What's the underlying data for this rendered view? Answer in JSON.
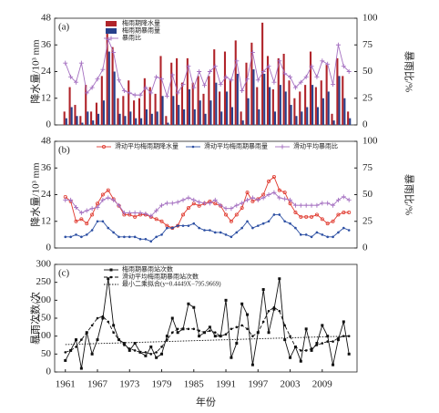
{
  "chart_data": [
    {
      "type": "bar",
      "panel_label": "(a)",
      "ylabel": "降水量/10³ mm",
      "y2label": "暴雨比/%",
      "xlim": [
        1959,
        2015.5
      ],
      "ylim": [
        0,
        48
      ],
      "yticks": [
        0,
        12,
        24,
        36,
        48
      ],
      "y2lim": [
        0,
        100
      ],
      "y2ticks": [
        0,
        25,
        50,
        75,
        100
      ],
      "legend": "top-left",
      "x": [
        1961,
        1962,
        1963,
        1964,
        1965,
        1966,
        1967,
        1968,
        1969,
        1970,
        1971,
        1972,
        1973,
        1974,
        1975,
        1976,
        1977,
        1978,
        1979,
        1980,
        1981,
        1982,
        1983,
        1984,
        1985,
        1986,
        1987,
        1988,
        1989,
        1990,
        1991,
        1992,
        1993,
        1994,
        1995,
        1996,
        1997,
        1998,
        1999,
        2000,
        2001,
        2002,
        2003,
        2004,
        2005,
        2006,
        2007,
        2008,
        2009,
        2010,
        2011,
        2012,
        2013,
        2014
      ],
      "series": [
        {
          "name": "梅雨期降水量",
          "type": "bar",
          "color": "#b0242a",
          "values": [
            6,
            17,
            9,
            4,
            18,
            6,
            10,
            22,
            42,
            35,
            12,
            13,
            20,
            11,
            12,
            21,
            17,
            14,
            31,
            4,
            28,
            30,
            19,
            30,
            19,
            22,
            14,
            22,
            34,
            15,
            33,
            20,
            38,
            6,
            28,
            37,
            17,
            46,
            31,
            16,
            30,
            32,
            20,
            12,
            15,
            18,
            33,
            17,
            20,
            27,
            5,
            30,
            22,
            6
          ]
        },
        {
          "name": "梅雨期暴雨量",
          "type": "bar",
          "color": "#27408b",
          "values": [
            3,
            8,
            4,
            1,
            6,
            2,
            5,
            11,
            33,
            24,
            5,
            4,
            6,
            3,
            3,
            7,
            5,
            6,
            13,
            1,
            13,
            9,
            7,
            16,
            7,
            11,
            5,
            11,
            19,
            6,
            15,
            8,
            23,
            2,
            12,
            25,
            7,
            23,
            17,
            6,
            18,
            15,
            9,
            4,
            6,
            8,
            18,
            8,
            12,
            15,
            2,
            22,
            12,
            3
          ]
        },
        {
          "name": "暴雨比",
          "type": "line",
          "axis": "y2",
          "marker": "plus",
          "color": "#a46fc0",
          "values": [
            58,
            45,
            40,
            58,
            30,
            35,
            43,
            52,
            80,
            68,
            42,
            32,
            30,
            28,
            28,
            35,
            30,
            45,
            43,
            27,
            47,
            30,
            38,
            55,
            35,
            50,
            37,
            50,
            55,
            38,
            45,
            42,
            60,
            32,
            43,
            68,
            42,
            50,
            55,
            40,
            60,
            48,
            45,
            35,
            40,
            45,
            55,
            45,
            60,
            57,
            38,
            75,
            55,
            50
          ]
        }
      ]
    },
    {
      "type": "line",
      "panel_label": "(b)",
      "ylabel": "降水量/10³ mm",
      "y2label": "暴雨比/%",
      "xlim": [
        1959,
        2015.5
      ],
      "ylim": [
        0,
        48
      ],
      "yticks": [
        0,
        12,
        24,
        36,
        48
      ],
      "y2lim": [
        0,
        100
      ],
      "y2ticks": [
        0,
        25,
        50,
        75,
        100
      ],
      "legend": "top",
      "x": [
        1961,
        1962,
        1963,
        1964,
        1965,
        1966,
        1967,
        1968,
        1969,
        1970,
        1971,
        1972,
        1973,
        1974,
        1975,
        1976,
        1977,
        1978,
        1979,
        1980,
        1981,
        1982,
        1983,
        1984,
        1985,
        1986,
        1987,
        1988,
        1989,
        1990,
        1991,
        1992,
        1993,
        1994,
        1995,
        1996,
        1997,
        1998,
        1999,
        2000,
        2001,
        2002,
        2003,
        2004,
        2005,
        2006,
        2007,
        2008,
        2009,
        2010,
        2011,
        2012,
        2013,
        2014
      ],
      "series": [
        {
          "name": "滑动平均梅雨期降水量",
          "marker": "circle",
          "color": "#e03a2f",
          "values": [
            23,
            21,
            12,
            13,
            11,
            15,
            20,
            24,
            26,
            22,
            19,
            15,
            15,
            14,
            15,
            15,
            14,
            13,
            12,
            10,
            9,
            10,
            15,
            18,
            20,
            19,
            20,
            21,
            20,
            19,
            15,
            12,
            15,
            18,
            25,
            21,
            22,
            24,
            30,
            32,
            26,
            25,
            20,
            16,
            14,
            14,
            14,
            15,
            13,
            11,
            12,
            15,
            16,
            16
          ]
        },
        {
          "name": "滑动平均梅雨期暴雨量",
          "marker": "dot",
          "color": "#2c4fa3",
          "values": [
            5,
            5,
            6,
            5,
            6,
            8,
            12,
            12,
            9,
            7,
            5,
            5,
            5,
            5,
            4,
            4,
            3,
            5,
            6,
            9,
            9,
            10,
            10,
            10,
            11,
            9,
            8,
            8,
            7,
            7,
            6,
            5,
            7,
            9,
            12,
            9,
            10,
            11,
            12,
            15,
            15,
            12,
            11,
            9,
            6,
            6,
            5,
            7,
            6,
            5,
            5,
            7,
            9,
            8
          ]
        },
        {
          "name": "滑动平均暴雨比",
          "axis": "y2",
          "marker": "plus",
          "color": "#a46fc0",
          "values": [
            45,
            45,
            38,
            33,
            35,
            37,
            38,
            45,
            47,
            45,
            40,
            33,
            33,
            33,
            33,
            32,
            30,
            35,
            40,
            42,
            42,
            43,
            45,
            47,
            45,
            43,
            42,
            42,
            45,
            40,
            37,
            37,
            40,
            42,
            45,
            47,
            45,
            47,
            50,
            52,
            47,
            46,
            45,
            40,
            40,
            40,
            40,
            40,
            42,
            42,
            40,
            45,
            48,
            45
          ]
        }
      ]
    },
    {
      "type": "line",
      "panel_label": "(c)",
      "ylabel": "暴雨次数/次",
      "xlabel": "年份",
      "xlim": [
        1959,
        2015.5
      ],
      "xticks": [
        1961,
        1967,
        1973,
        1979,
        1985,
        1991,
        1997,
        2003,
        2009
      ],
      "ylim": [
        0,
        300
      ],
      "yticks": [
        0,
        50,
        100,
        150,
        200,
        250,
        300
      ],
      "legend": "top-left",
      "x": [
        1961,
        1962,
        1963,
        1964,
        1965,
        1966,
        1967,
        1968,
        1969,
        1970,
        1971,
        1972,
        1973,
        1974,
        1975,
        1976,
        1977,
        1978,
        1979,
        1980,
        1981,
        1982,
        1983,
        1984,
        1985,
        1986,
        1987,
        1988,
        1989,
        1990,
        1991,
        1992,
        1993,
        1994,
        1995,
        1996,
        1997,
        1998,
        1999,
        2000,
        2001,
        2002,
        2003,
        2004,
        2005,
        2006,
        2007,
        2008,
        2009,
        2010,
        2011,
        2012,
        2013,
        2014
      ],
      "series": [
        {
          "name": "梅雨期暴雨站次数",
          "marker": "square",
          "color": "#111111",
          "values": [
            32,
            60,
            90,
            10,
            110,
            50,
            90,
            150,
            260,
            130,
            90,
            80,
            60,
            80,
            55,
            45,
            70,
            40,
            50,
            100,
            150,
            110,
            120,
            190,
            180,
            100,
            110,
            125,
            100,
            100,
            200,
            40,
            80,
            190,
            160,
            20,
            110,
            230,
            110,
            175,
            260,
            90,
            40,
            70,
            30,
            120,
            60,
            80,
            130,
            100,
            20,
            90,
            140,
            50
          ]
        },
        {
          "name": "滑动平均梅雨期暴雨站次数",
          "marker": "dot",
          "dash": "dashed",
          "color": "#111111",
          "values": [
            55,
            60,
            70,
            90,
            110,
            130,
            150,
            155,
            140,
            110,
            90,
            75,
            65,
            60,
            55,
            55,
            50,
            55,
            70,
            90,
            110,
            120,
            120,
            120,
            120,
            115,
            110,
            115,
            110,
            100,
            105,
            120,
            125,
            130,
            120,
            100,
            110,
            140,
            170,
            180,
            170,
            130,
            100,
            70,
            60,
            60,
            65,
            75,
            80,
            85,
            85,
            95,
            100,
            100
          ]
        },
        {
          "name": "最小二乘拟合(y=0.4449X−795.9669)",
          "dash": "dotted",
          "color": "#111111",
          "x": [
            1961,
            2014
          ],
          "values": [
            76.5,
            100.1
          ]
        }
      ]
    }
  ]
}
